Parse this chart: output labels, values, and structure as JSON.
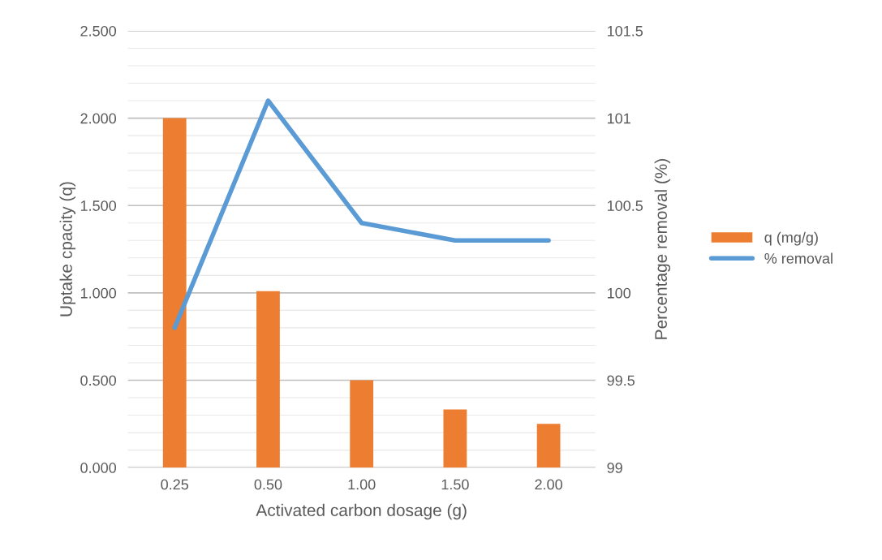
{
  "chart_data": {
    "type": "bar",
    "xlabel": "Activated carbon dosage (g)",
    "ylabel": "Uptake cpacity (q)",
    "y2label": "Percentage removal (%)",
    "categories": [
      "0.25",
      "0.50",
      "1.00",
      "1.50",
      "2.00"
    ],
    "series": [
      {
        "name": "q (mg/g)",
        "color": "#ed7d31",
        "values": [
          2.0,
          1.01,
          0.5,
          0.333,
          0.25
        ]
      },
      {
        "name": "% removal",
        "type": "line",
        "axis": "y2",
        "color": "#5b9bd5",
        "values": [
          99.8,
          101.1,
          100.4,
          100.3,
          100.3
        ]
      }
    ],
    "ylim": [
      0,
      2.5
    ],
    "yticks": [
      {
        "value": 0,
        "label": "0.000"
      },
      {
        "value": 0.1,
        "label": null
      },
      {
        "value": 0.2,
        "label": null
      },
      {
        "value": 0.3,
        "label": null
      },
      {
        "value": 0.4,
        "label": null
      },
      {
        "value": 0.5,
        "label": "0.500"
      },
      {
        "value": 0.6,
        "label": null
      },
      {
        "value": 0.7,
        "label": null
      },
      {
        "value": 0.8,
        "label": null
      },
      {
        "value": 0.9,
        "label": null
      },
      {
        "value": 1.0,
        "label": "1.000"
      },
      {
        "value": 1.1,
        "label": null
      },
      {
        "value": 1.2,
        "label": null
      },
      {
        "value": 1.3,
        "label": null
      },
      {
        "value": 1.4,
        "label": null
      },
      {
        "value": 1.5,
        "label": "1.500"
      },
      {
        "value": 1.6,
        "label": null
      },
      {
        "value": 1.7,
        "label": null
      },
      {
        "value": 1.8,
        "label": null
      },
      {
        "value": 1.9,
        "label": null
      },
      {
        "value": 2.0,
        "label": "2.000"
      },
      {
        "value": 2.1,
        "label": null
      },
      {
        "value": 2.2,
        "label": null
      },
      {
        "value": 2.3,
        "label": null
      },
      {
        "value": 2.4,
        "label": null
      },
      {
        "value": 2.5,
        "label": "2.500"
      }
    ],
    "y2lim": [
      99,
      101.5
    ],
    "y2ticks": [
      99,
      99.5,
      100,
      100.5,
      101,
      101.5
    ],
    "grid": "y",
    "legend": "right",
    "marker": "none",
    "line_style": "solid"
  }
}
